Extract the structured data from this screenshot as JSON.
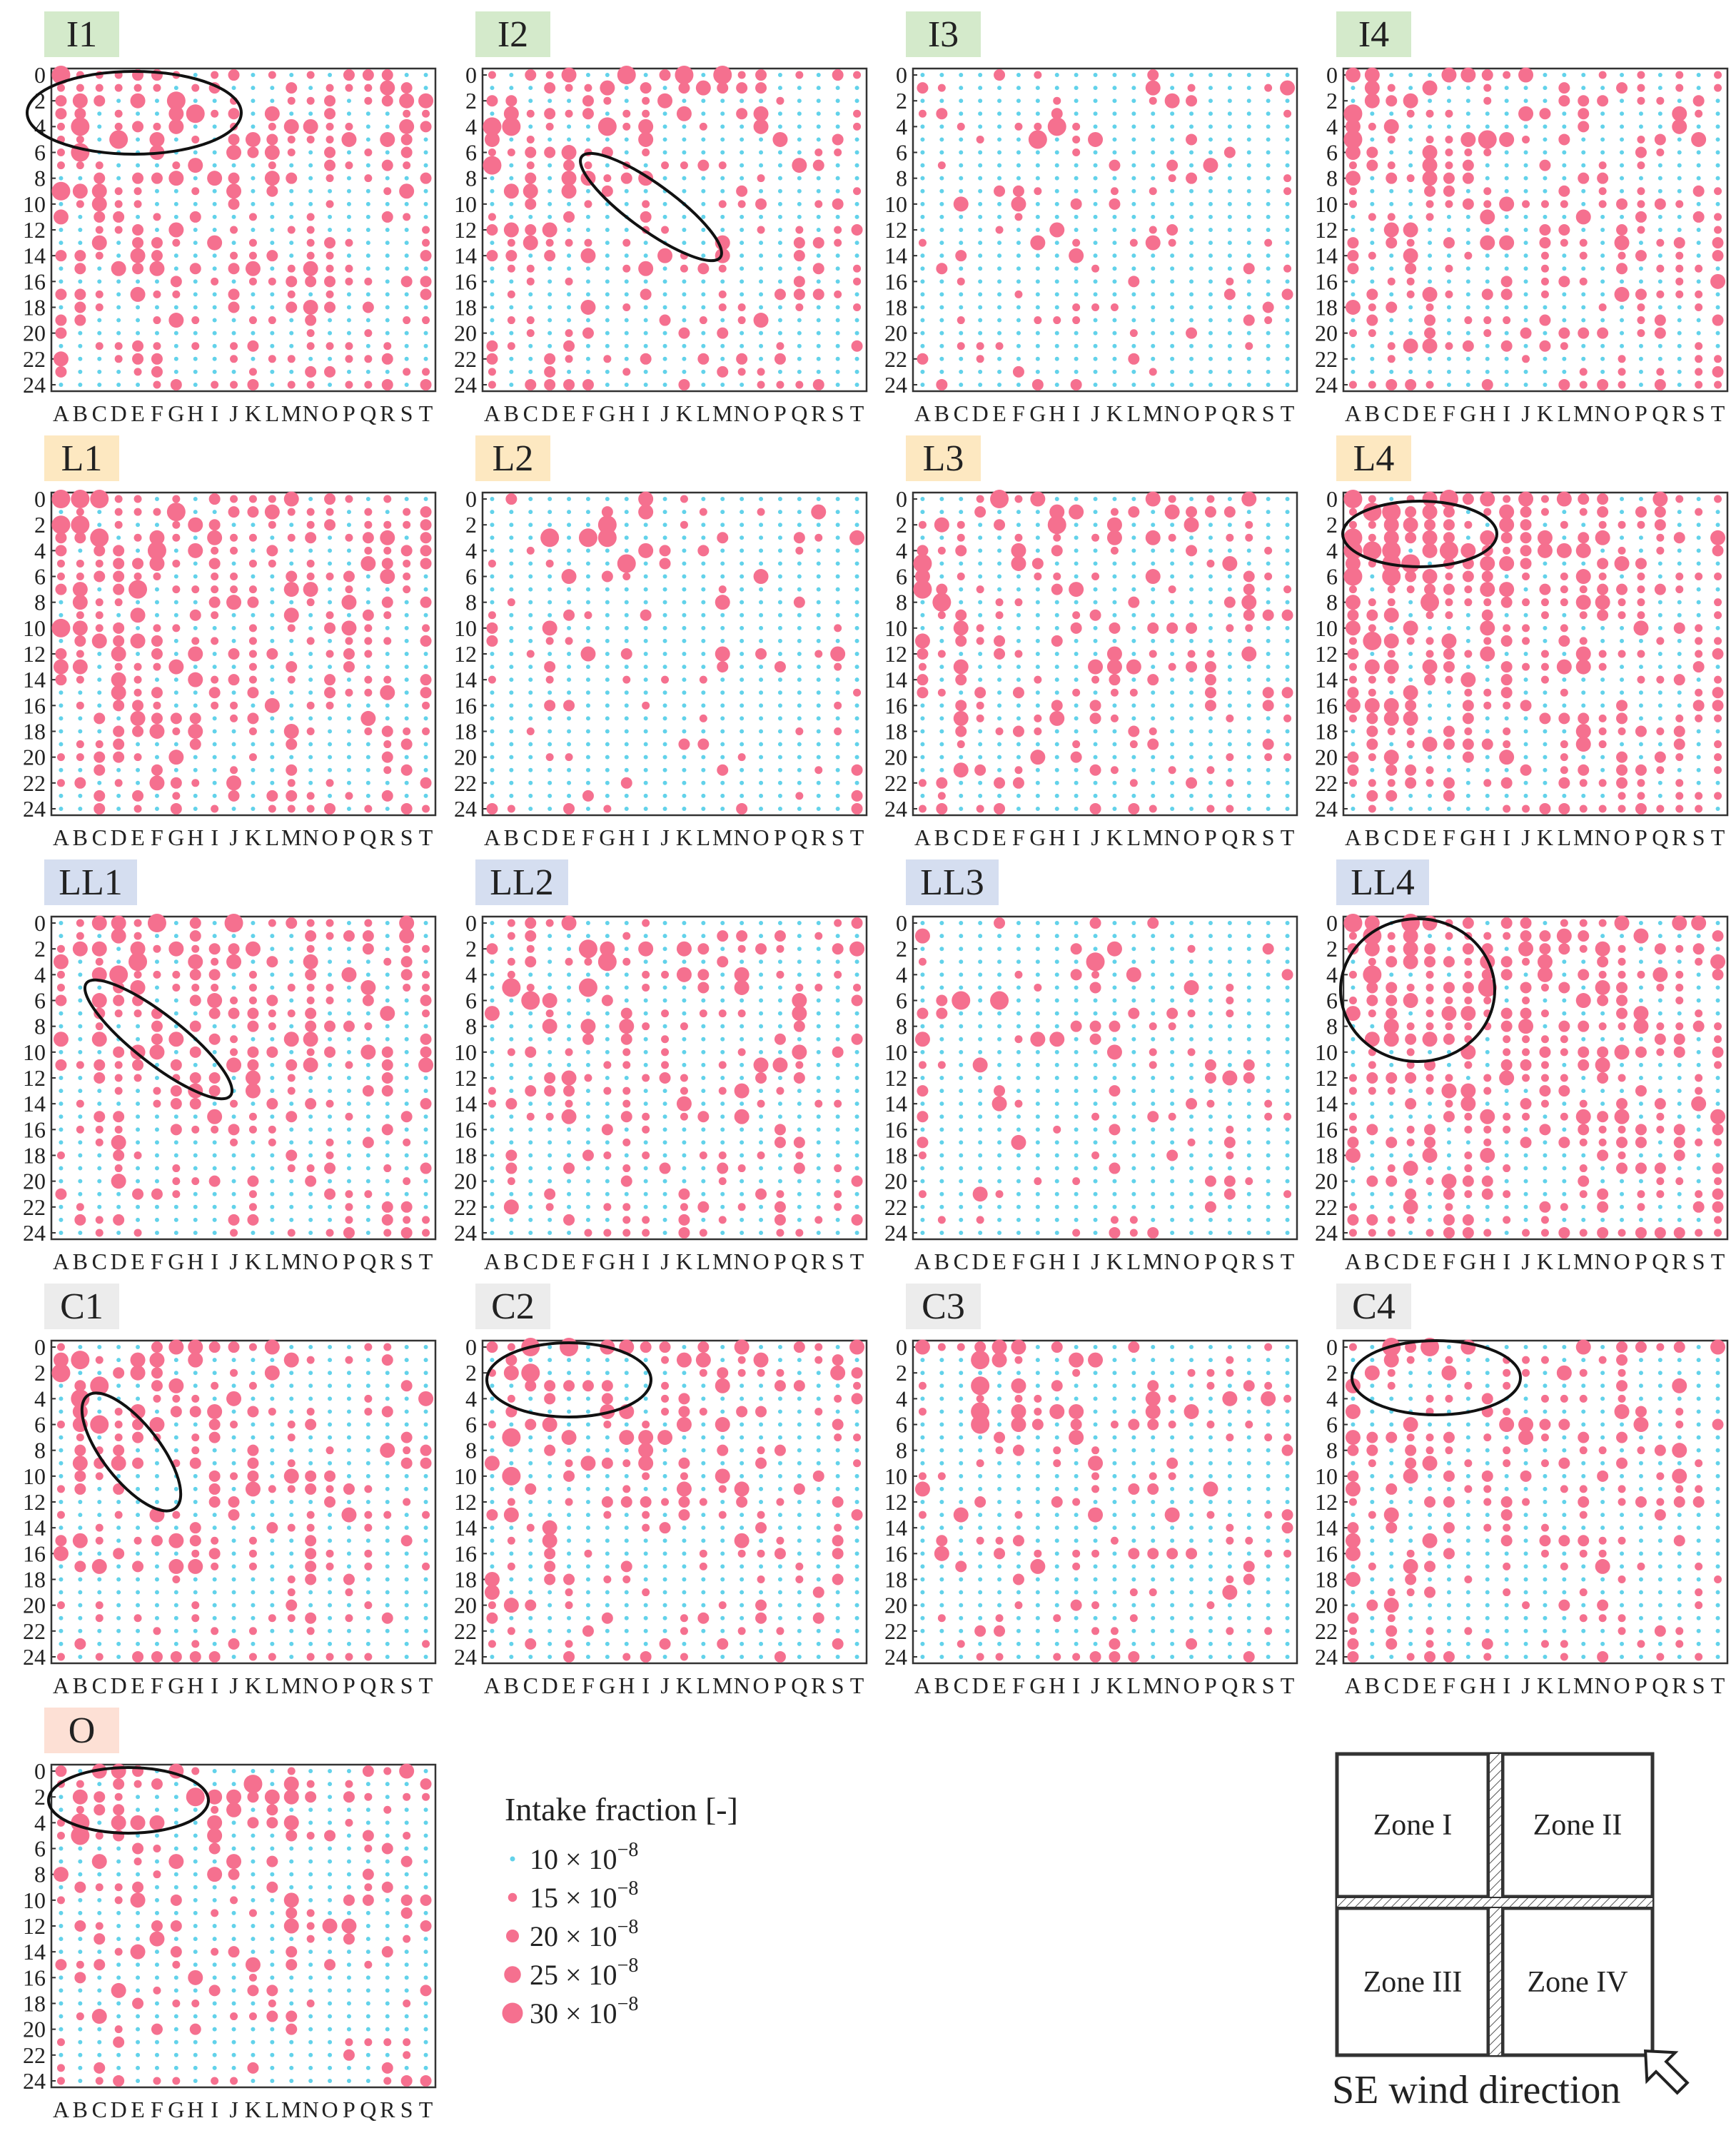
{
  "chart_data": {
    "type": "scatter",
    "encoding": "bubble grid: marker size = intake fraction; pink = at or above 15e-8, blue = 10e-8",
    "x_categories": [
      "A",
      "B",
      "C",
      "D",
      "E",
      "F",
      "G",
      "H",
      "I",
      "J",
      "K",
      "L",
      "M",
      "N",
      "O",
      "P",
      "Q",
      "R",
      "S",
      "T"
    ],
    "y_ticks": [
      0,
      2,
      4,
      6,
      8,
      10,
      12,
      14,
      16,
      18,
      20,
      22,
      24
    ],
    "ylim": [
      0,
      24
    ],
    "y_inverted": true,
    "x_tick_text": "ABCDEFGHI JKLMNOPQRST",
    "colors": {
      "high": "#f5708f",
      "low": "#62d2ea"
    },
    "panels": [
      {
        "id": "I1",
        "group": "I",
        "label_bg": "#d4eacb",
        "approx_overall_level": "high",
        "highlight": "top-left region, rows 1-5"
      },
      {
        "id": "I2",
        "group": "I",
        "label_bg": "#d4eacb",
        "approx_overall_level": "medium",
        "highlight": "diagonal band, rows 4-13"
      },
      {
        "id": "I3",
        "group": "I",
        "label_bg": "#d4eacb",
        "approx_overall_level": "low"
      },
      {
        "id": "I4",
        "group": "I",
        "label_bg": "#d4eacb",
        "approx_overall_level": "medium-high"
      },
      {
        "id": "L1",
        "group": "L",
        "label_bg": "#fde8c1",
        "approx_overall_level": "high"
      },
      {
        "id": "L2",
        "group": "L",
        "label_bg": "#fde8c1",
        "approx_overall_level": "low"
      },
      {
        "id": "L3",
        "group": "L",
        "label_bg": "#fde8c1",
        "approx_overall_level": "medium"
      },
      {
        "id": "L4",
        "group": "L",
        "label_bg": "#fde8c1",
        "approx_overall_level": "very high",
        "highlight": "top-left region, rows 1-5"
      },
      {
        "id": "LL1",
        "group": "LL",
        "label_bg": "#d5def0",
        "approx_overall_level": "medium-high",
        "highlight": "diagonal band, rows 4-14"
      },
      {
        "id": "LL2",
        "group": "LL",
        "label_bg": "#d5def0",
        "approx_overall_level": "medium"
      },
      {
        "id": "LL3",
        "group": "LL",
        "label_bg": "#d5def0",
        "approx_overall_level": "low"
      },
      {
        "id": "LL4",
        "group": "LL",
        "label_bg": "#d5def0",
        "approx_overall_level": "very high",
        "highlight": "large circle, rows 1-11"
      },
      {
        "id": "C1",
        "group": "C",
        "label_bg": "#ececec",
        "approx_overall_level": "medium",
        "highlight": "diagonal band, rows 3-11"
      },
      {
        "id": "C2",
        "group": "C",
        "label_bg": "#ececec",
        "approx_overall_level": "medium",
        "highlight": "top-left region, rows 1-6"
      },
      {
        "id": "C3",
        "group": "C",
        "label_bg": "#ececec",
        "approx_overall_level": "medium-low"
      },
      {
        "id": "C4",
        "group": "C",
        "label_bg": "#ececec",
        "approx_overall_level": "medium",
        "highlight": "top-left region, rows 0-5"
      },
      {
        "id": "O",
        "group": "O",
        "label_bg": "#fde0d5",
        "approx_overall_level": "medium",
        "highlight": "top-left region, rows 1-5"
      }
    ],
    "legend": {
      "title": "Intake fraction [-]",
      "entries": [
        {
          "value": 10,
          "base": "10 × 10",
          "exp": "−8",
          "color": "low"
        },
        {
          "value": 15,
          "base": "15 × 10",
          "exp": "−8",
          "color": "high"
        },
        {
          "value": 20,
          "base": "20 × 10",
          "exp": "−8",
          "color": "high"
        },
        {
          "value": 25,
          "base": "25 × 10",
          "exp": "−8",
          "color": "high"
        },
        {
          "value": 30,
          "base": "30 × 10",
          "exp": "−8",
          "color": "high"
        }
      ]
    },
    "zone_map": {
      "zones": [
        "Zone I",
        "Zone II",
        "Zone III",
        "Zone IV"
      ],
      "caption": "SE wind direction"
    }
  }
}
